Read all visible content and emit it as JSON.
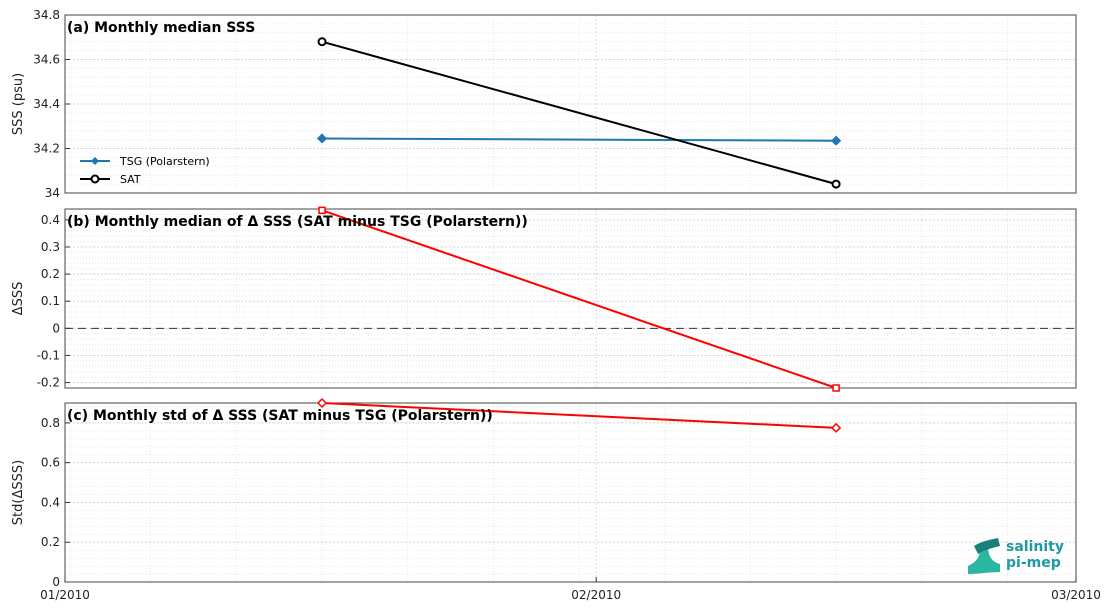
{
  "chart_data": [
    {
      "type": "line",
      "title": "(a) Monthly median SSS",
      "ylabel": "SSS (psu)",
      "ylim": [
        34.0,
        34.8
      ],
      "yticks": [
        "34",
        "34.2",
        "34.4",
        "34.6",
        "34.8"
      ],
      "x": [
        "2010-01-16",
        "2010-02-15"
      ],
      "series": [
        {
          "name": "TSG (Polarstern)",
          "color": "#1f77b4",
          "marker": "diamond",
          "values": [
            34.245,
            34.235
          ]
        },
        {
          "name": "SAT",
          "color": "#000000",
          "marker": "circle",
          "values": [
            34.68,
            34.04
          ]
        }
      ],
      "legend": "bottom-left",
      "grid": true
    },
    {
      "type": "line",
      "title": "(b) Monthly median of Δ SSS (SAT minus TSG (Polarstern))",
      "ylabel": "ΔSSS",
      "ylim": [
        -0.22,
        0.44
      ],
      "yticks": [
        "-0.2",
        "-0.1",
        "0",
        "0.1",
        "0.2",
        "0.3",
        "0.4"
      ],
      "x": [
        "2010-01-16",
        "2010-02-15"
      ],
      "series": [
        {
          "color": "#ff0000",
          "marker": "square",
          "values": [
            0.435,
            -0.22
          ]
        }
      ],
      "zero_line": true,
      "grid": true
    },
    {
      "type": "line",
      "title": "(c) Monthly std of Δ SSS (SAT minus TSG (Polarstern))",
      "ylabel": "Std(ΔSSS)",
      "ylim": [
        0,
        0.9
      ],
      "yticks": [
        "0",
        "0.2",
        "0.4",
        "0.6",
        "0.8"
      ],
      "x": [
        "2010-01-16",
        "2010-02-15"
      ],
      "series": [
        {
          "color": "#ff0000",
          "marker": "diamond",
          "values": [
            0.9,
            0.775
          ]
        }
      ],
      "grid": true
    }
  ],
  "x_axis": {
    "xlim": [
      "2010-01-01",
      "2010-03-01"
    ],
    "ticks": [
      {
        "date": "2010-01-01",
        "label": "01/2010"
      },
      {
        "date": "2010-02-01",
        "label": "02/2010"
      },
      {
        "date": "2010-03-01",
        "label": "03/2010"
      }
    ]
  },
  "logo": {
    "line1": "salinity",
    "line2": "pi-mep"
  }
}
